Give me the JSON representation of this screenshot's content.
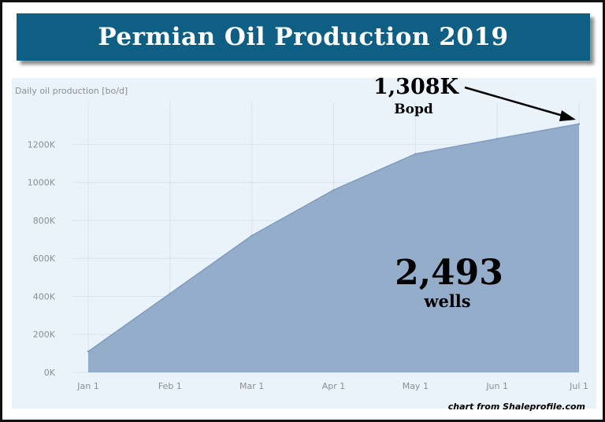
{
  "banner": {
    "title": "Permian Oil Production 2019"
  },
  "chart_data": {
    "type": "area",
    "title": "Permian Oil Production 2019",
    "ylabel": "Daily oil production [bo/d]",
    "xlabel": "",
    "categories": [
      "Jan 1",
      "Feb 1",
      "Mar 1",
      "Apr 1",
      "May 1",
      "Jun 1",
      "Jul 1"
    ],
    "y_ticks": [
      "0K",
      "200K",
      "400K",
      "600K",
      "800K",
      "1000K",
      "1200K"
    ],
    "y_tick_values": [
      0,
      200000,
      400000,
      600000,
      800000,
      1000000,
      1200000
    ],
    "ylim": [
      0,
      1380000
    ],
    "series": [
      {
        "values": [
          110000,
          415000,
          720000,
          960000,
          1150000,
          1230000,
          1308000
        ]
      }
    ],
    "fill_color": "#8ea9c7",
    "grid": true,
    "annotations": {
      "peak_value": "1,308K",
      "peak_unit": "Bopd",
      "wells_count": "2,493",
      "wells_label": "wells"
    }
  },
  "footer": {
    "credit": "chart from Shaleprofile.com"
  }
}
